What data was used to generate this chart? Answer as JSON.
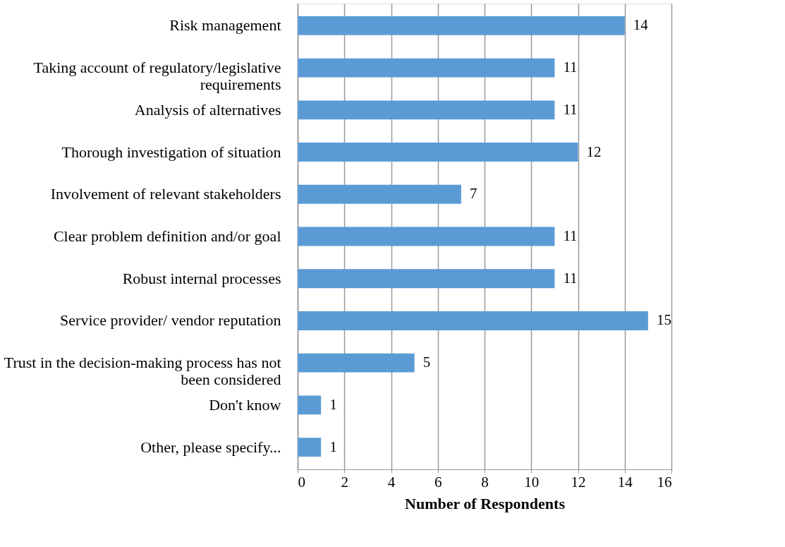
{
  "chart_data": {
    "type": "bar",
    "orientation": "horizontal",
    "categories": [
      "Risk management",
      "Taking account of regulatory/legislative requirements",
      "Analysis of alternatives",
      "Thorough investigation of situation",
      "Involvement of relevant stakeholders",
      "Clear problem definition and/or goal",
      "Robust internal processes",
      "Service provider/ vendor reputation",
      "Trust in the decision-making process has not been considered",
      "Don't know",
      "Other, please specify..."
    ],
    "values": [
      14,
      11,
      11,
      12,
      7,
      11,
      11,
      15,
      5,
      1,
      1
    ],
    "color": "#5b9bd5",
    "xlabel": "Number of Respondents",
    "xlim": [
      0,
      16
    ],
    "xticks": [
      0,
      2,
      4,
      6,
      8,
      10,
      12,
      14,
      16
    ],
    "grid": "x",
    "data_labels": true
  }
}
